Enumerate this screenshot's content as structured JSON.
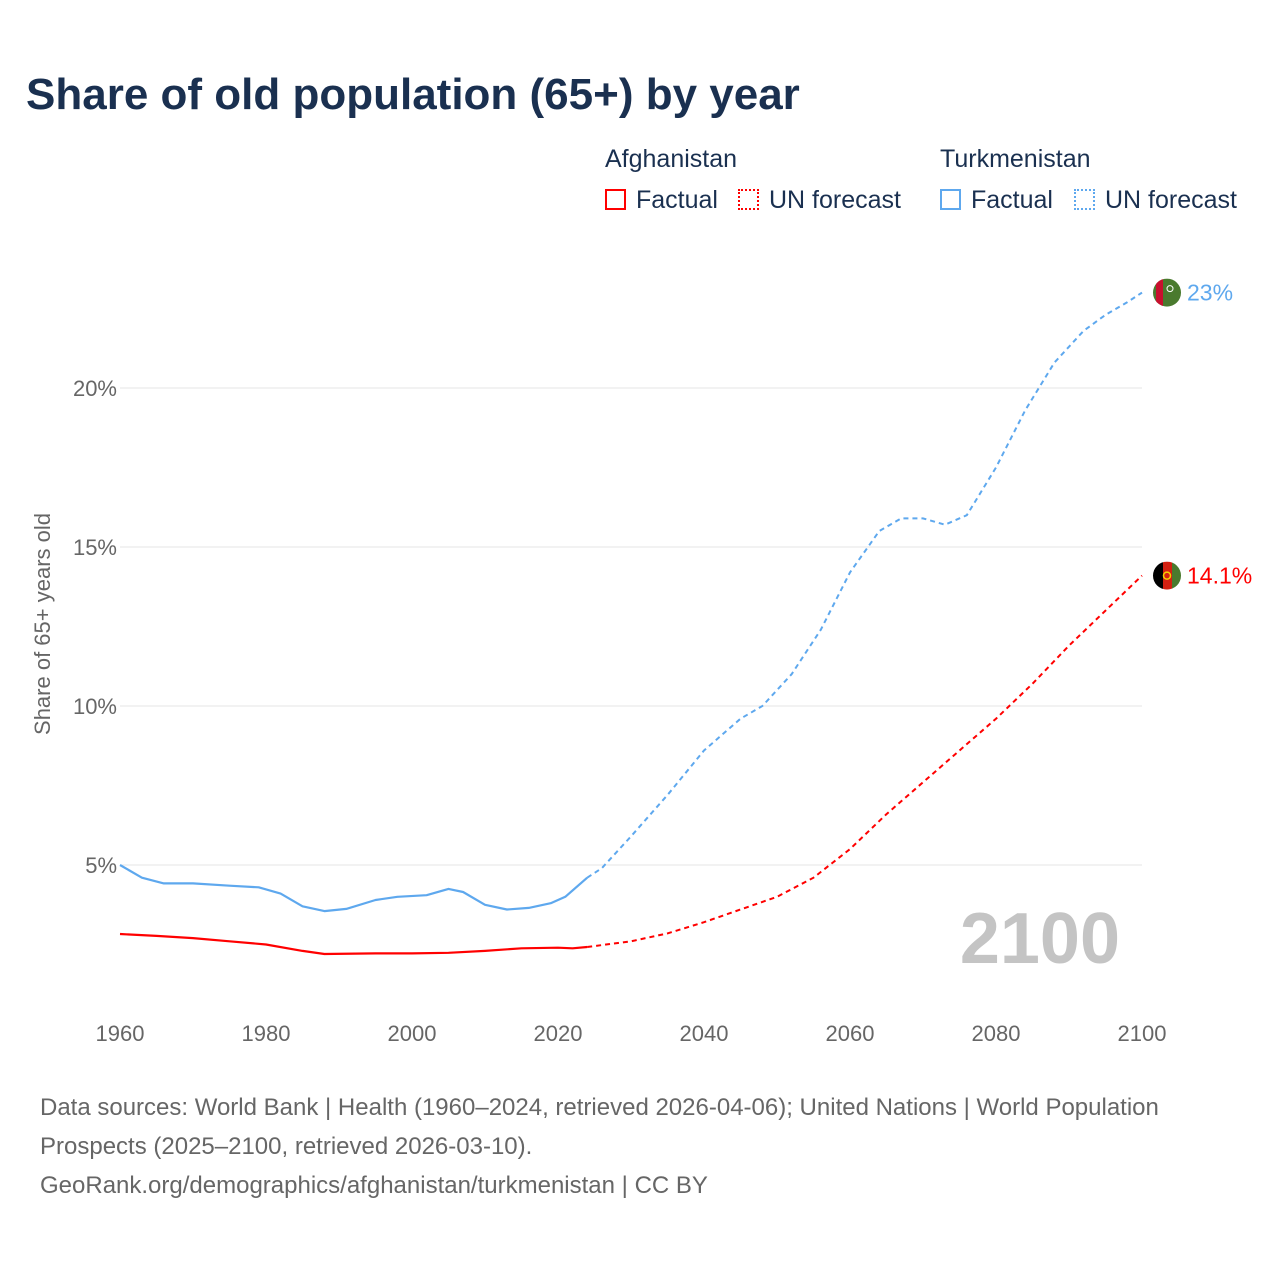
{
  "title": "Share of old population (65+) by year",
  "legend": {
    "groups": [
      {
        "country": "Afghanistan",
        "factual": "Factual",
        "forecast": "UN forecast",
        "color": "#ff0000"
      },
      {
        "country": "Turkmenistan",
        "factual": "Factual",
        "forecast": "UN forecast",
        "color": "#5ea8ee"
      }
    ]
  },
  "year_watermark": "2100",
  "footer": {
    "sources": "Data sources: World Bank | Health (1960–2024, retrieved 2026-04-06); United Nations | World Population Prospects (2025–2100, retrieved 2026-03-10).",
    "attribution": "GeoRank.org/demographics/afghanistan/turkmenistan | CC BY"
  },
  "chart_data": {
    "type": "line",
    "title": "Share of old population (65+) by year",
    "xlabel": "",
    "ylabel": "Share of 65+ years old",
    "xlim": [
      1960,
      2100
    ],
    "ylim": [
      0,
      23
    ],
    "x_ticks": [
      "1960",
      "1980",
      "2000",
      "2020",
      "2040",
      "2060",
      "2080",
      "2100"
    ],
    "y_ticks": [
      {
        "v": 5,
        "label": "5%"
      },
      {
        "v": 10,
        "label": "10%"
      },
      {
        "v": 15,
        "label": "15%"
      },
      {
        "v": 20,
        "label": "20%"
      }
    ],
    "grid": true,
    "legend_position": "top-right",
    "series": [
      {
        "name": "Turkmenistan",
        "color": "#5ea8ee",
        "end_label": "23%",
        "factual": [
          [
            1960,
            5.0
          ],
          [
            1963,
            4.6
          ],
          [
            1966,
            4.42
          ],
          [
            1970,
            4.42
          ],
          [
            1975,
            4.35
          ],
          [
            1979,
            4.3
          ],
          [
            1982,
            4.1
          ],
          [
            1985,
            3.7
          ],
          [
            1988,
            3.55
          ],
          [
            1991,
            3.62
          ],
          [
            1995,
            3.9
          ],
          [
            1998,
            4.0
          ],
          [
            2002,
            4.05
          ],
          [
            2005,
            4.25
          ],
          [
            2007,
            4.15
          ],
          [
            2010,
            3.75
          ],
          [
            2013,
            3.6
          ],
          [
            2016,
            3.65
          ],
          [
            2019,
            3.8
          ],
          [
            2021,
            4.0
          ],
          [
            2024,
            4.6
          ]
        ],
        "forecast": [
          [
            2024,
            4.6
          ],
          [
            2026,
            4.9
          ],
          [
            2030,
            5.9
          ],
          [
            2035,
            7.2
          ],
          [
            2040,
            8.6
          ],
          [
            2045,
            9.6
          ],
          [
            2048,
            10.0
          ],
          [
            2052,
            11.0
          ],
          [
            2056,
            12.4
          ],
          [
            2060,
            14.2
          ],
          [
            2064,
            15.5
          ],
          [
            2067,
            15.9
          ],
          [
            2070,
            15.9
          ],
          [
            2073,
            15.7
          ],
          [
            2076,
            16.0
          ],
          [
            2080,
            17.5
          ],
          [
            2084,
            19.3
          ],
          [
            2088,
            20.8
          ],
          [
            2092,
            21.8
          ],
          [
            2095,
            22.3
          ],
          [
            2098,
            22.7
          ],
          [
            2100,
            23.0
          ]
        ]
      },
      {
        "name": "Afghanistan",
        "color": "#ff0000",
        "end_label": "14.1%",
        "factual": [
          [
            1960,
            2.83
          ],
          [
            1965,
            2.77
          ],
          [
            1970,
            2.7
          ],
          [
            1975,
            2.6
          ],
          [
            1980,
            2.5
          ],
          [
            1985,
            2.3
          ],
          [
            1988,
            2.2
          ],
          [
            1995,
            2.22
          ],
          [
            2000,
            2.22
          ],
          [
            2005,
            2.24
          ],
          [
            2010,
            2.3
          ],
          [
            2015,
            2.38
          ],
          [
            2020,
            2.4
          ],
          [
            2022,
            2.38
          ],
          [
            2024,
            2.42
          ]
        ],
        "forecast": [
          [
            2024,
            2.42
          ],
          [
            2030,
            2.6
          ],
          [
            2035,
            2.85
          ],
          [
            2040,
            3.2
          ],
          [
            2045,
            3.6
          ],
          [
            2050,
            4.0
          ],
          [
            2055,
            4.6
          ],
          [
            2060,
            5.5
          ],
          [
            2065,
            6.6
          ],
          [
            2070,
            7.6
          ],
          [
            2075,
            8.6
          ],
          [
            2080,
            9.6
          ],
          [
            2085,
            10.7
          ],
          [
            2090,
            11.9
          ],
          [
            2095,
            13.0
          ],
          [
            2100,
            14.1
          ]
        ]
      }
    ]
  }
}
